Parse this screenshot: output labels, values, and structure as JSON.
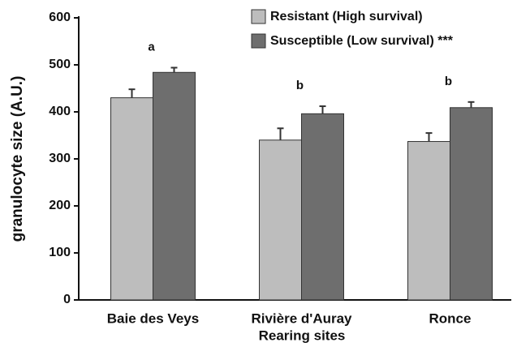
{
  "chart_data": {
    "type": "bar",
    "y_label": "granulocyte size (A.U.)",
    "x_label": "Rearing sites",
    "categories": [
      "Baie des Veys",
      "Rivière d'Auray",
      "Ronce"
    ],
    "group_labels": [
      "a",
      "b",
      "b"
    ],
    "series": [
      {
        "name": "Resistant (High survival)",
        "color": "#bdbdbd",
        "values": [
          430,
          340,
          337
        ],
        "errors": [
          18,
          25,
          18
        ]
      },
      {
        "name": "Susceptible (Low survival) ***",
        "color": "#6e6e6e",
        "values": [
          484,
          396,
          409
        ],
        "errors": [
          10,
          16,
          12
        ]
      }
    ],
    "ylim": [
      0,
      600
    ],
    "yticks": [
      0,
      100,
      200,
      300,
      400,
      500,
      600
    ]
  }
}
